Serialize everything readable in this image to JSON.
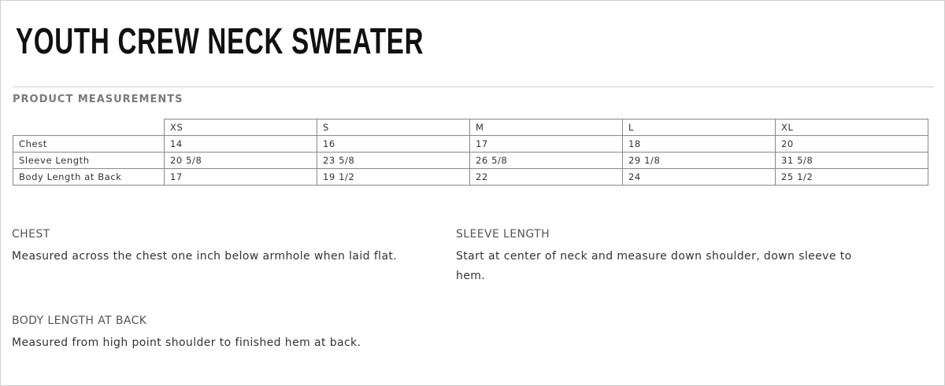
{
  "title": "YOUTH CREW NECK SWEATER",
  "subtitle": "PRODUCT MEASUREMENTS",
  "table": {
    "headers": [
      "",
      "XS",
      "S",
      "M",
      "L",
      "XL"
    ],
    "rows": [
      {
        "label": "Chest",
        "values": [
          "14",
          "16",
          "17",
          "18",
          "20"
        ]
      },
      {
        "label": "Sleeve Length",
        "values": [
          "20 5/8",
          "23 5/8",
          "26 5/8",
          "29 1/8",
          "31 5/8"
        ]
      },
      {
        "label": "Body Length at Back",
        "values": [
          "17",
          "19 1/2",
          "22",
          "24",
          "25 1/2"
        ]
      }
    ]
  },
  "notes": [
    {
      "heading": "CHEST",
      "text": "Measured across the chest one inch below armhole when laid flat."
    },
    {
      "heading": "SLEEVE LENGTH",
      "text": "Start at center of neck and measure down shoulder, down sleeve to hem."
    },
    {
      "heading": "BODY LENGTH AT BACK",
      "text": "Measured from high point shoulder to finished hem at back."
    }
  ]
}
